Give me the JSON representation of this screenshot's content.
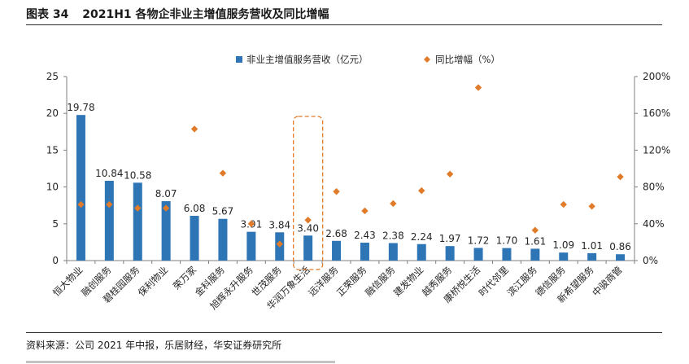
{
  "figure": {
    "number": "图表 34",
    "title": "2021H1 各物企非业主增值服务营收及同比增幅"
  },
  "source": "资料来源：公司 2021 年中报，乐居财经，华安证券研究所",
  "colors": {
    "bar": "#2E75B6",
    "marker": "#E07B2A",
    "highlight_box": "#E07B2A",
    "axis": "#7f7f7f",
    "text": "#262626"
  },
  "chart_data": {
    "type": "bar",
    "categories": [
      "恒大物业",
      "融创服务",
      "碧桂园服务",
      "保利物业",
      "荣万家",
      "金科服务",
      "旭辉永升服务",
      "世茂服务",
      "华润万象生活",
      "远洋服务",
      "正荣服务",
      "融信服务",
      "建发物业",
      "越秀服务",
      "康桥悦生活",
      "时代邻里",
      "滨江服务",
      "德信服务",
      "新希望服务",
      "中骏商管"
    ],
    "series": [
      {
        "name": "非业主增值服务营收（亿元）",
        "type": "bar",
        "axis": "left",
        "values": [
          19.78,
          10.84,
          10.58,
          8.07,
          6.08,
          5.67,
          3.91,
          3.84,
          3.4,
          2.68,
          2.43,
          2.38,
          2.24,
          1.97,
          1.72,
          1.7,
          1.61,
          1.09,
          1.01,
          0.86
        ],
        "value_labels": [
          "19.78",
          "10.84",
          "10.58",
          "8.07",
          "6.08",
          "5.67",
          "3.91",
          "3.84",
          "3.40",
          "2.68",
          "2.43",
          "2.38",
          "2.24",
          "1.97",
          "1.72",
          "1.70",
          "1.61",
          "1.09",
          "1.01",
          "0.86"
        ]
      },
      {
        "name": "同比增幅（%）",
        "type": "scatter",
        "axis": "right",
        "values": [
          61,
          61,
          57,
          57,
          143,
          95,
          40,
          18,
          44,
          75,
          54,
          62,
          76,
          94,
          188,
          null,
          33,
          61,
          59,
          91
        ]
      }
    ],
    "y_left": {
      "min": 0,
      "max": 25,
      "ticks": [
        0,
        5,
        10,
        15,
        20,
        25
      ]
    },
    "y_right": {
      "min": 0,
      "max": 200,
      "ticks": [
        0,
        40,
        80,
        120,
        160,
        200
      ],
      "tick_labels": [
        "0%",
        "40%",
        "80%",
        "120%",
        "160%",
        "200%"
      ]
    },
    "highlight_category": "华润万象生活",
    "legend_position": "top"
  }
}
